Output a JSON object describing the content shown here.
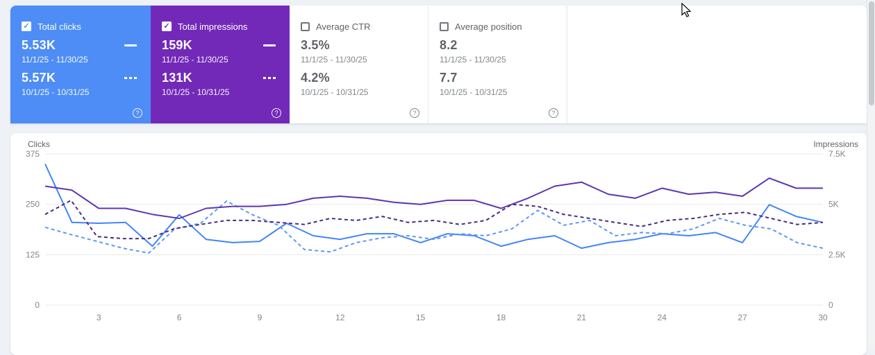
{
  "icons": {
    "help_glyph": "?",
    "check_glyph": "✓"
  },
  "cards": [
    {
      "label": "Total clicks",
      "selected": true,
      "color": "#4d8df5",
      "current": {
        "value": "5.53K",
        "range": "11/1/25 - 11/30/25"
      },
      "previous": {
        "value": "5.57K",
        "range": "10/1/25 - 10/31/25"
      }
    },
    {
      "label": "Total impressions",
      "selected": true,
      "color": "#7329b8",
      "current": {
        "value": "159K",
        "range": "11/1/25 - 11/30/25"
      },
      "previous": {
        "value": "131K",
        "range": "10/1/25 - 10/31/25"
      }
    },
    {
      "label": "Average CTR",
      "selected": false,
      "current": {
        "value": "3.5%",
        "range": "11/1/25 - 11/30/25"
      },
      "previous": {
        "value": "4.2%",
        "range": "10/1/25 - 10/31/25"
      }
    },
    {
      "label": "Average position",
      "selected": false,
      "current": {
        "value": "8.2",
        "range": "11/1/25 - 11/30/25"
      },
      "previous": {
        "value": "7.7",
        "range": "10/1/25 - 10/31/25"
      }
    }
  ],
  "chart_data": {
    "type": "line",
    "grid": true,
    "left_axis": {
      "label": "Clicks",
      "max": 375,
      "ticks": [
        {
          "value": 0,
          "label": "0"
        },
        {
          "value": 125,
          "label": "125"
        },
        {
          "value": 250,
          "label": "250"
        },
        {
          "value": 375,
          "label": "375"
        }
      ]
    },
    "right_axis": {
      "label": "Impressions",
      "max": 7500,
      "ticks": [
        {
          "value": 0,
          "label": "0"
        },
        {
          "value": 2500,
          "label": "2.5K"
        },
        {
          "value": 5000,
          "label": "5K"
        },
        {
          "value": 7500,
          "label": "7.5K"
        }
      ]
    },
    "x_ticks": [
      3,
      6,
      9,
      12,
      15,
      18,
      21,
      24,
      27,
      30
    ],
    "series": [
      {
        "name": "Clicks (11/1/25 - 11/30/25)",
        "axis": "left",
        "style": "solid",
        "color": "#4285f4",
        "values": [
          350,
          205,
          203,
          205,
          146,
          224,
          163,
          155,
          158,
          203,
          172,
          163,
          177,
          177,
          155,
          177,
          172,
          146,
          163,
          172,
          141,
          155,
          163,
          177,
          172,
          180,
          155,
          249,
          220,
          205
        ]
      },
      {
        "name": "Clicks (10/1/25 - 10/31/25)",
        "axis": "left",
        "style": "dashed",
        "color": "#5e97f6",
        "values": [
          193,
          175,
          158,
          141,
          129,
          189,
          203,
          258,
          224,
          198,
          138,
          132,
          155,
          167,
          172,
          163,
          177,
          172,
          189,
          235,
          198,
          210,
          172,
          180,
          177,
          189,
          215,
          198,
          189,
          155,
          141
        ]
      },
      {
        "name": "Impressions (11/1/25 - 11/30/25)",
        "axis": "right",
        "style": "solid",
        "color": "#5e35b1",
        "values": [
          5900,
          5700,
          4800,
          4800,
          4500,
          4300,
          4800,
          4900,
          4900,
          5000,
          5300,
          5400,
          5300,
          5100,
          5000,
          5200,
          5200,
          4800,
          5300,
          5900,
          6100,
          5500,
          5300,
          5800,
          5500,
          5600,
          5400,
          6300,
          5800,
          5800
        ]
      },
      {
        "name": "Impressions (10/1/25 - 10/31/25)",
        "axis": "right",
        "style": "dashed",
        "color": "#4a2a82",
        "values": [
          4500,
          5200,
          3400,
          3300,
          3300,
          3800,
          4000,
          4200,
          4200,
          4100,
          4000,
          4300,
          4200,
          4400,
          4100,
          4200,
          4000,
          4200,
          5000,
          4900,
          4500,
          4300,
          4100,
          3900,
          4200,
          4300,
          4500,
          4600,
          4300,
          4000,
          4100
        ]
      }
    ]
  }
}
